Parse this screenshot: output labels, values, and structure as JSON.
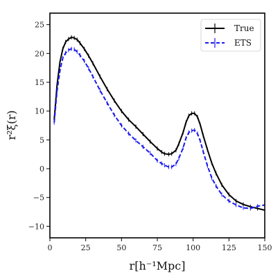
{
  "chart_data": {
    "type": "line",
    "xlabel": "r[h⁻¹Mpc]",
    "ylabel": "r²ξ(r)",
    "xlim": [
      0,
      150
    ],
    "ylim": [
      -12,
      27
    ],
    "xticks": [
      0,
      25,
      50,
      75,
      100,
      125,
      150
    ],
    "yticks": [
      -10,
      -5,
      0,
      5,
      10,
      15,
      20,
      25
    ],
    "grid": false,
    "legend_position": "top-right",
    "series": [
      {
        "name": "True",
        "color": "#000000",
        "style": "solid",
        "errorbars": true,
        "x": [
          3,
          5,
          7,
          9,
          11,
          13,
          15,
          17,
          19,
          21,
          24,
          27,
          30,
          35,
          40,
          45,
          50,
          55,
          60,
          65,
          70,
          75,
          78,
          80,
          83,
          85,
          88,
          90,
          93,
          95,
          97,
          99,
          101,
          103,
          105,
          107,
          110,
          113,
          116,
          120,
          125,
          130,
          135,
          140,
          145,
          150
        ],
        "values": [
          8.5,
          14.5,
          18.5,
          20.8,
          22.0,
          22.5,
          22.8,
          22.7,
          22.4,
          21.8,
          20.8,
          19.6,
          18.3,
          16.0,
          13.8,
          11.8,
          10.0,
          8.5,
          7.3,
          6.0,
          4.7,
          3.5,
          2.9,
          2.6,
          2.5,
          2.6,
          3.2,
          4.3,
          6.3,
          8.0,
          9.2,
          9.6,
          9.6,
          9.0,
          7.6,
          5.8,
          3.3,
          1.0,
          -0.8,
          -2.8,
          -4.5,
          -5.6,
          -6.2,
          -6.6,
          -6.9,
          -7.2
        ]
      },
      {
        "name": "ETS",
        "color": "#1a1aee",
        "style": "dashed",
        "errorbars": true,
        "x": [
          3,
          5,
          7,
          9,
          11,
          13,
          15,
          17,
          19,
          21,
          24,
          27,
          30,
          35,
          40,
          45,
          50,
          55,
          60,
          65,
          70,
          75,
          78,
          80,
          83,
          85,
          88,
          90,
          93,
          95,
          97,
          99,
          101,
          103,
          105,
          107,
          110,
          113,
          116,
          120,
          125,
          130,
          135,
          140,
          145,
          150
        ],
        "values": [
          8.0,
          13.5,
          17.0,
          19.2,
          20.1,
          20.6,
          20.8,
          20.7,
          20.3,
          19.7,
          18.7,
          17.4,
          16.0,
          13.6,
          11.4,
          9.3,
          7.5,
          6.1,
          4.9,
          3.8,
          2.7,
          1.4,
          0.9,
          0.6,
          0.3,
          0.3,
          0.8,
          1.8,
          3.6,
          5.3,
          6.3,
          6.6,
          6.7,
          6.1,
          4.8,
          3.0,
          0.5,
          -1.6,
          -3.0,
          -4.5,
          -5.6,
          -6.3,
          -6.8,
          -6.9,
          -6.5,
          -6.3
        ]
      }
    ]
  }
}
